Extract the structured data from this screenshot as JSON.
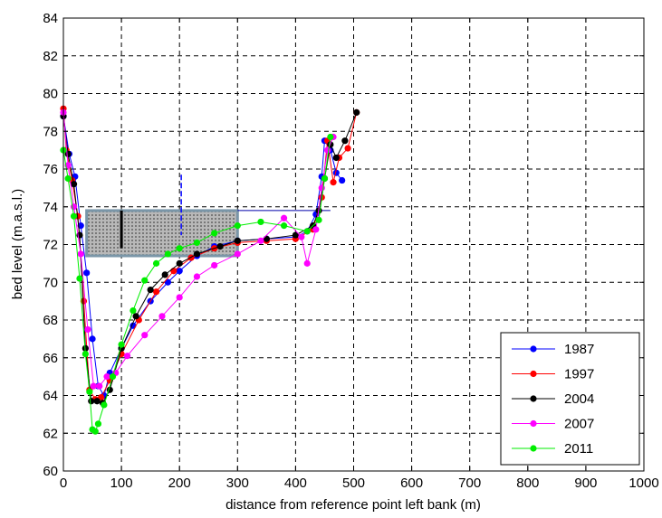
{
  "chart_data": {
    "type": "line",
    "title": "",
    "xlabel": "distance from reference point left bank (m)",
    "ylabel": "bed level (m.a.s.l.)",
    "xlim": [
      0,
      1000
    ],
    "ylim": [
      60,
      84
    ],
    "xticks": [
      0,
      100,
      200,
      300,
      400,
      500,
      600,
      700,
      800,
      900,
      1000
    ],
    "yticks": [
      60,
      62,
      64,
      66,
      68,
      70,
      72,
      74,
      76,
      78,
      80,
      82,
      84
    ],
    "grid": true,
    "legend_position": "bottom-right",
    "series": [
      {
        "name": "1987",
        "color": "#0000ff",
        "x": [
          0,
          10,
          20,
          30,
          40,
          50,
          60,
          70,
          80,
          100,
          120,
          150,
          180,
          200,
          230,
          260,
          300,
          350,
          400,
          420,
          435,
          445,
          450,
          460,
          470,
          480
        ],
        "y": [
          78.8,
          76.8,
          75.6,
          73,
          70.5,
          67,
          64.5,
          64,
          65.2,
          66.5,
          67.7,
          69,
          70,
          70.6,
          71.4,
          71.9,
          72.2,
          72.3,
          72.4,
          72.7,
          73.6,
          75.6,
          77.5,
          77,
          75.8,
          75.4
        ]
      },
      {
        "name": "1997",
        "color": "#ff0000",
        "x": [
          0,
          5,
          15,
          25,
          35,
          45,
          55,
          65,
          80,
          100,
          130,
          160,
          190,
          220,
          260,
          300,
          350,
          400,
          430,
          445,
          455,
          465,
          475,
          490,
          505
        ],
        "y": [
          79.2,
          77,
          75.4,
          73.5,
          69,
          64.3,
          63.8,
          63.9,
          64.8,
          66.2,
          68,
          69.5,
          70.6,
          71.3,
          71.8,
          72.1,
          72.2,
          72.3,
          72.8,
          74.5,
          77.5,
          75.3,
          76.6,
          77.1,
          79
        ]
      },
      {
        "name": "2004",
        "color": "#000000",
        "x": [
          0,
          8,
          18,
          28,
          38,
          48,
          58,
          68,
          80,
          100,
          125,
          150,
          175,
          200,
          230,
          270,
          300,
          350,
          400,
          430,
          440,
          450,
          460,
          470,
          485,
          505
        ],
        "y": [
          78.8,
          76.8,
          75.2,
          72.5,
          66.5,
          63.7,
          63.7,
          63.6,
          64.3,
          66.5,
          68.2,
          69.6,
          70.4,
          71,
          71.5,
          71.9,
          72.2,
          72.3,
          72.5,
          73,
          73.8,
          75.5,
          77.3,
          76.6,
          77.5,
          79
        ]
      },
      {
        "name": "2007",
        "color": "#ff00ff",
        "x": [
          0,
          8,
          18,
          30,
          42,
          52,
          62,
          75,
          90,
          110,
          140,
          170,
          200,
          230,
          260,
          300,
          340,
          380,
          410,
          420,
          435,
          445,
          455,
          465
        ],
        "y": [
          79,
          76.2,
          74,
          71.5,
          67.5,
          64.5,
          64.5,
          65,
          65.2,
          66.1,
          67.2,
          68.2,
          69.2,
          70.3,
          70.9,
          71.5,
          72.2,
          73.4,
          72.4,
          71,
          72.8,
          75,
          77,
          77.7
        ]
      },
      {
        "name": "2011",
        "color": "#00ee00",
        "x": [
          0,
          8,
          18,
          28,
          38,
          45,
          50,
          55,
          60,
          70,
          85,
          100,
          120,
          140,
          160,
          180,
          200,
          230,
          260,
          300,
          340,
          380,
          420,
          440,
          450,
          460
        ],
        "y": [
          77,
          75.5,
          73.5,
          70.2,
          66.2,
          64.2,
          62.2,
          62.1,
          62.5,
          63.5,
          65,
          66.7,
          68.5,
          70.1,
          71,
          71.5,
          71.8,
          72.1,
          72.6,
          73,
          73.2,
          73,
          72.7,
          73.3,
          75.5,
          77.7
        ]
      }
    ],
    "annotations": {
      "shaded_box": {
        "x0": 40,
        "x1": 300,
        "y0": 71.4,
        "y1": 73.8,
        "fill": "#b8b8b8",
        "border": "#7a96a8"
      },
      "water_level_line": {
        "x0": 300,
        "x1": 460,
        "y": 73.8,
        "color": "#0000aa"
      },
      "vertical_marker_black": {
        "x": 100,
        "y0": 71.8,
        "y1": 73.8,
        "color": "#000000"
      },
      "vertical_marker_blue": {
        "x": 203,
        "y0": 72.5,
        "y1": 75.7,
        "color": "#0000ff"
      }
    }
  }
}
